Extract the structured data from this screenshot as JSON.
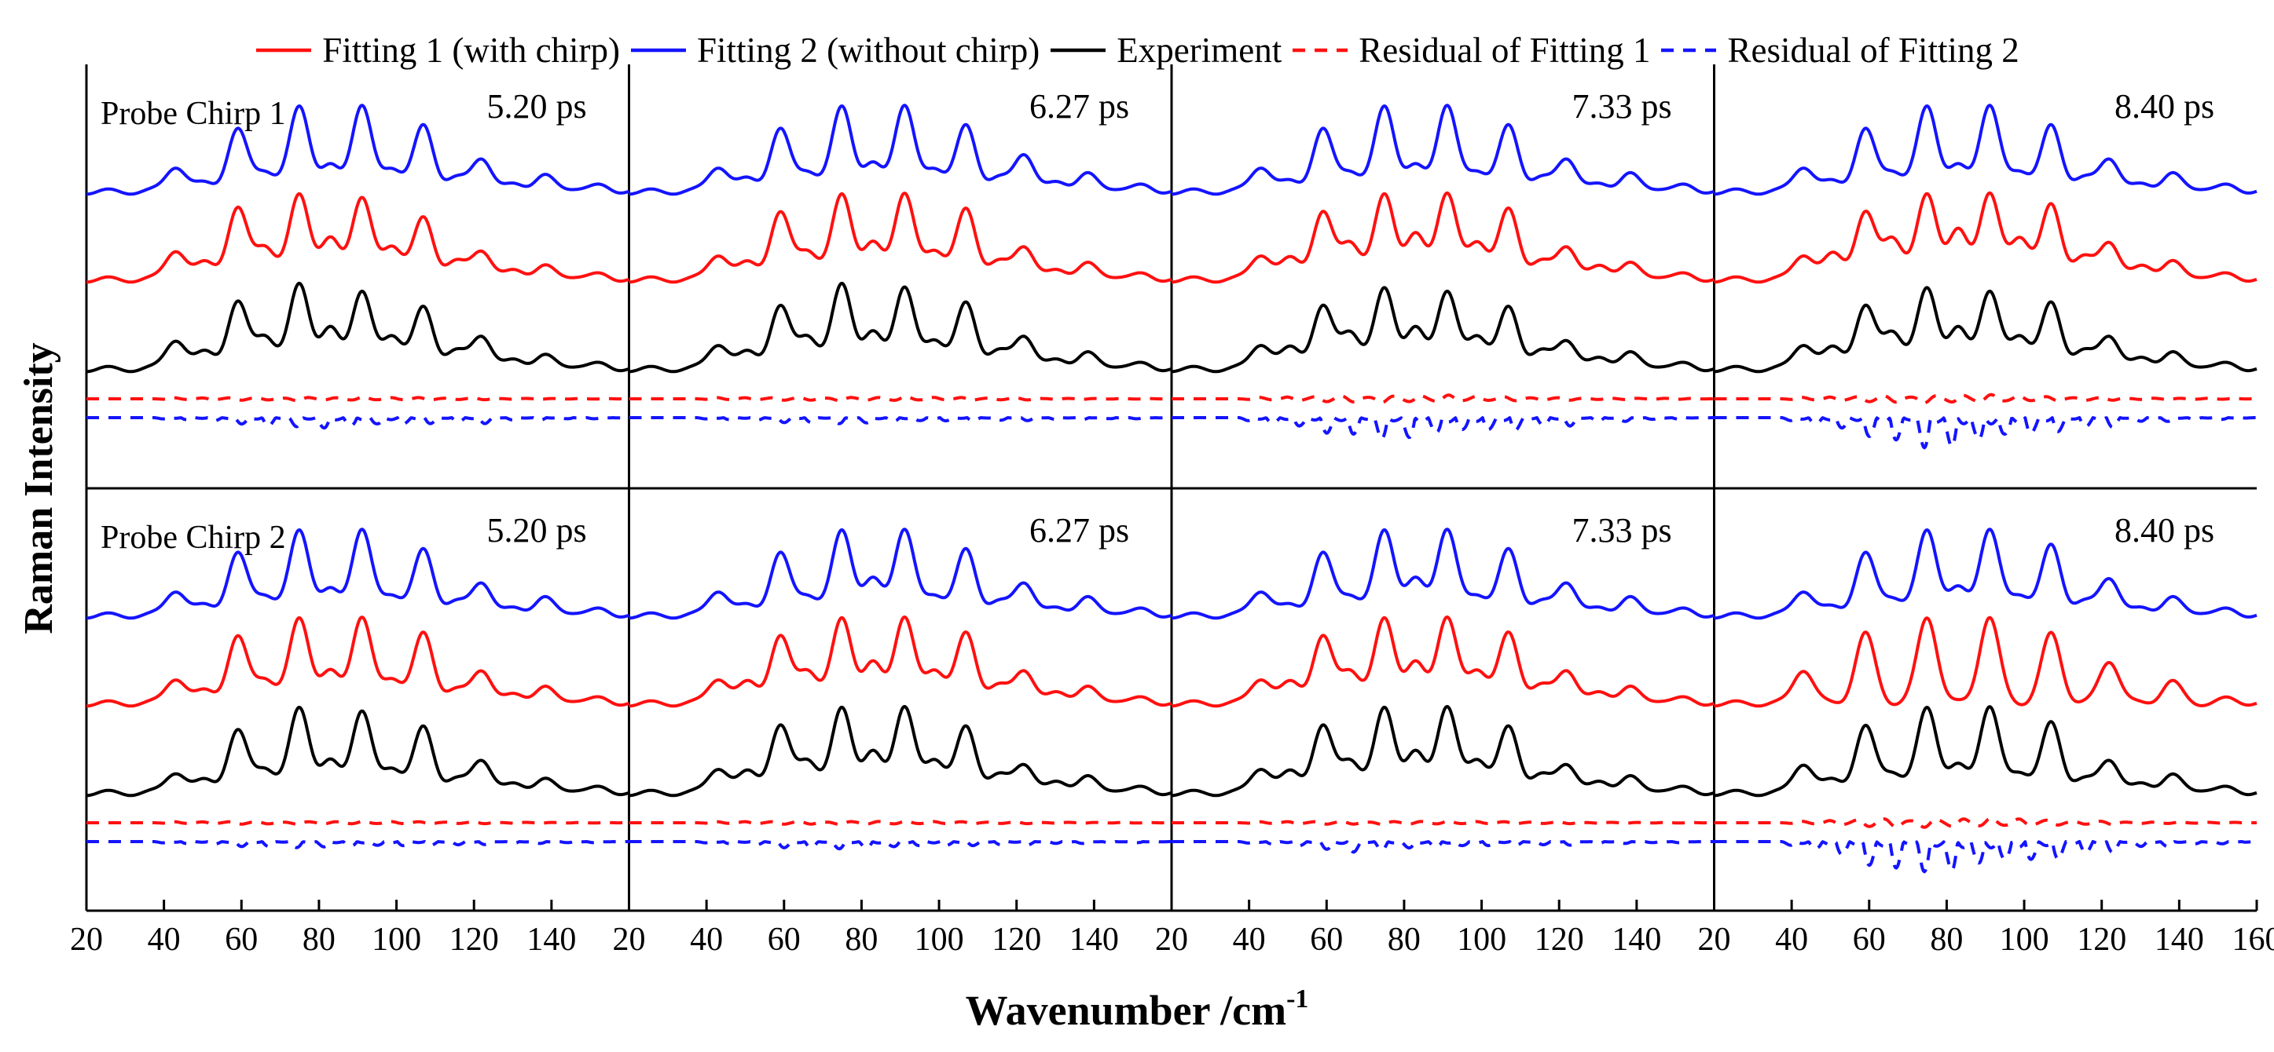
{
  "legend": [
    {
      "label": "Fitting 1 (with chirp)",
      "color": "#ff1010",
      "dash": "solid"
    },
    {
      "label": "Fitting 2 (without chirp)",
      "color": "#1414ff",
      "dash": "solid"
    },
    {
      "label": "Experiment",
      "color": "#000000",
      "dash": "solid"
    },
    {
      "label": "Residual of  Fitting 1",
      "color": "#ff1010",
      "dash": "dashed"
    },
    {
      "label": "Residual of Fitting 2",
      "color": "#1414ff",
      "dash": "dashed"
    }
  ],
  "axes": {
    "ylabel": "Raman Intensity",
    "xlabel_main": "Wavenumber /cm",
    "xlabel_sup": "-1",
    "xlim": [
      20,
      160
    ],
    "panel_tick_labels": [
      "20",
      "40",
      "60",
      "80",
      "100",
      "120",
      "140"
    ],
    "last_panel_tick_labels": [
      "20",
      "40",
      "60",
      "80",
      "100",
      "120",
      "140",
      "160"
    ]
  },
  "rows": [
    {
      "label": "Probe Chirp 1",
      "times": [
        "5.20 ps",
        "6.27 ps",
        "7.33 ps",
        "8.40 ps"
      ]
    },
    {
      "label": "Probe Chirp 2",
      "times": [
        "5.20 ps",
        "6.27 ps",
        "7.33 ps",
        "8.40 ps"
      ]
    }
  ],
  "chart_data": {
    "type": "line",
    "title": "",
    "xlabel": "Wavenumber /cm-1",
    "ylabel": "Raman Intensity",
    "xlim": [
      20,
      160
    ],
    "grid": false,
    "legend_position": "top",
    "peak_positions_cm-1": [
      43,
      51,
      59,
      66,
      75,
      83,
      91,
      99,
      107,
      115,
      122,
      131,
      138,
      146,
      153
    ],
    "series_order": [
      "Fitting 2 (without chirp)",
      "Fitting 1 (with chirp)",
      "Experiment",
      "Residual of  Fitting 1",
      "Residual of Fitting 2"
    ],
    "panels": [
      {
        "row": "Probe Chirp 1",
        "time": "5.20 ps",
        "peaks": {
          "x": [
            43,
            51,
            59,
            66,
            75,
            83,
            91,
            99,
            107,
            115,
            122,
            131,
            138,
            146,
            153
          ],
          "Fitting 2 (without chirp)": [
            0.3,
            0.1,
            0.7,
            0.25,
            1.0,
            0.28,
            1.0,
            0.28,
            0.75,
            0.15,
            0.4,
            0.08,
            0.18,
            0.05,
            0.06
          ],
          "Fitting 1 (with chirp)": [
            0.35,
            0.2,
            0.8,
            0.4,
            1.0,
            0.45,
            0.95,
            0.4,
            0.7,
            0.2,
            0.35,
            0.1,
            0.15,
            0.05,
            0.05
          ],
          "Experiment": [
            0.35,
            0.2,
            0.75,
            0.4,
            1.0,
            0.45,
            0.9,
            0.4,
            0.7,
            0.2,
            0.4,
            0.1,
            0.15,
            0.05,
            0.05
          ],
          "Residual of  Fitting 1": [
            0.04,
            0.04,
            0.06,
            0.05,
            0.08,
            0.05,
            0.08,
            0.05,
            0.06,
            0.03,
            0.04,
            0.02,
            0.02,
            0.01,
            0.01
          ],
          "Residual of Fitting 2": [
            0.05,
            0.06,
            0.1,
            0.14,
            0.15,
            0.2,
            0.18,
            0.16,
            0.12,
            0.06,
            0.1,
            0.04,
            0.04,
            0.02,
            0.02
          ]
        }
      },
      {
        "row": "Probe Chirp 1",
        "time": "6.27 ps",
        "peaks": {
          "x": [
            43,
            51,
            59,
            66,
            75,
            83,
            91,
            99,
            107,
            115,
            122,
            131,
            138,
            146,
            153
          ],
          "Fitting 2 (without chirp)": [
            0.3,
            0.15,
            0.7,
            0.25,
            1.0,
            0.3,
            1.0,
            0.28,
            0.75,
            0.15,
            0.45,
            0.1,
            0.2,
            0.05,
            0.06
          ],
          "Fitting 1 (with chirp)": [
            0.3,
            0.2,
            0.75,
            0.35,
            1.0,
            0.4,
            1.0,
            0.35,
            0.8,
            0.2,
            0.4,
            0.1,
            0.18,
            0.05,
            0.05
          ],
          "Experiment": [
            0.3,
            0.2,
            0.7,
            0.4,
            1.0,
            0.4,
            0.95,
            0.35,
            0.75,
            0.2,
            0.4,
            0.1,
            0.18,
            0.05,
            0.05
          ],
          "Residual of  Fitting 1": [
            0.05,
            0.05,
            0.06,
            0.06,
            0.08,
            0.06,
            0.1,
            0.06,
            0.06,
            0.04,
            0.05,
            0.02,
            0.02,
            0.01,
            0.01
          ],
          "Residual of Fitting 2": [
            0.05,
            0.05,
            0.08,
            0.08,
            0.1,
            0.1,
            0.08,
            0.08,
            0.06,
            0.04,
            0.05,
            0.03,
            0.03,
            0.02,
            0.02
          ]
        }
      },
      {
        "row": "Probe Chirp 1",
        "time": "7.33 ps",
        "peaks": {
          "x": [
            43,
            51,
            59,
            66,
            75,
            83,
            91,
            99,
            107,
            115,
            122,
            131,
            138,
            146,
            153
          ],
          "Fitting 2 (without chirp)": [
            0.3,
            0.12,
            0.7,
            0.25,
            1.0,
            0.28,
            1.0,
            0.25,
            0.75,
            0.15,
            0.4,
            0.08,
            0.2,
            0.05,
            0.06
          ],
          "Fitting 1 (with chirp)": [
            0.3,
            0.25,
            0.75,
            0.45,
            1.0,
            0.5,
            1.0,
            0.45,
            0.8,
            0.2,
            0.4,
            0.15,
            0.18,
            0.05,
            0.05
          ],
          "Experiment": [
            0.3,
            0.25,
            0.7,
            0.45,
            0.95,
            0.45,
            0.9,
            0.4,
            0.7,
            0.2,
            0.35,
            0.12,
            0.18,
            0.05,
            0.05
          ],
          "Residual of  Fitting 1": [
            0.06,
            0.08,
            0.12,
            0.14,
            0.16,
            0.14,
            0.16,
            0.1,
            0.1,
            0.05,
            0.06,
            0.03,
            0.03,
            0.02,
            0.02
          ],
          "Residual of Fitting 2": [
            0.12,
            0.16,
            0.25,
            0.28,
            0.35,
            0.38,
            0.35,
            0.3,
            0.25,
            0.12,
            0.14,
            0.06,
            0.06,
            0.03,
            0.03
          ]
        }
      },
      {
        "row": "Probe Chirp 1",
        "time": "8.40 ps",
        "peaks": {
          "x": [
            43,
            51,
            59,
            66,
            75,
            83,
            91,
            99,
            107,
            115,
            122,
            131,
            138,
            146,
            153
          ],
          "Fitting 2 (without chirp)": [
            0.3,
            0.12,
            0.7,
            0.25,
            1.0,
            0.28,
            1.0,
            0.25,
            0.75,
            0.15,
            0.4,
            0.08,
            0.2,
            0.05,
            0.06
          ],
          "Fitting 1 (with chirp)": [
            0.3,
            0.3,
            0.75,
            0.5,
            1.0,
            0.55,
            1.0,
            0.5,
            0.85,
            0.25,
            0.45,
            0.15,
            0.2,
            0.05,
            0.05
          ],
          "Experiment": [
            0.3,
            0.25,
            0.7,
            0.45,
            0.95,
            0.45,
            0.9,
            0.4,
            0.75,
            0.2,
            0.4,
            0.12,
            0.18,
            0.05,
            0.05
          ],
          "Residual of  Fitting 1": [
            0.06,
            0.08,
            0.12,
            0.15,
            0.18,
            0.16,
            0.18,
            0.12,
            0.1,
            0.06,
            0.06,
            0.03,
            0.03,
            0.02,
            0.02
          ],
          "Residual of Fitting 2": [
            0.12,
            0.2,
            0.3,
            0.38,
            0.5,
            0.55,
            0.5,
            0.4,
            0.28,
            0.14,
            0.16,
            0.06,
            0.06,
            0.03,
            0.03
          ]
        }
      },
      {
        "row": "Probe Chirp 2",
        "time": "5.20 ps",
        "peaks": {
          "x": [
            43,
            51,
            59,
            66,
            75,
            83,
            91,
            99,
            107,
            115,
            122,
            131,
            138,
            146,
            153
          ],
          "Fitting 2 (without chirp)": [
            0.3,
            0.12,
            0.7,
            0.25,
            1.0,
            0.28,
            1.0,
            0.25,
            0.75,
            0.15,
            0.4,
            0.08,
            0.2,
            0.05,
            0.06
          ],
          "Fitting 1 (with chirp)": [
            0.3,
            0.15,
            0.75,
            0.3,
            1.0,
            0.35,
            1.0,
            0.3,
            0.8,
            0.15,
            0.4,
            0.1,
            0.18,
            0.05,
            0.05
          ],
          "Experiment": [
            0.25,
            0.15,
            0.7,
            0.3,
            1.0,
            0.35,
            0.95,
            0.3,
            0.75,
            0.15,
            0.4,
            0.1,
            0.15,
            0.05,
            0.05
          ],
          "Residual of  Fitting 1": [
            0.04,
            0.04,
            0.06,
            0.05,
            0.06,
            0.05,
            0.06,
            0.05,
            0.05,
            0.03,
            0.04,
            0.02,
            0.02,
            0.01,
            0.01
          ],
          "Residual of Fitting 2": [
            0.05,
            0.05,
            0.08,
            0.08,
            0.1,
            0.1,
            0.1,
            0.1,
            0.08,
            0.05,
            0.05,
            0.03,
            0.03,
            0.02,
            0.02
          ]
        }
      },
      {
        "row": "Probe Chirp 2",
        "time": "6.27 ps",
        "peaks": {
          "x": [
            43,
            51,
            59,
            66,
            75,
            83,
            91,
            99,
            107,
            115,
            122,
            131,
            138,
            146,
            153
          ],
          "Fitting 2 (without chirp)": [
            0.3,
            0.12,
            0.7,
            0.25,
            1.0,
            0.4,
            1.0,
            0.25,
            0.75,
            0.15,
            0.4,
            0.08,
            0.2,
            0.05,
            0.06
          ],
          "Fitting 1 (with chirp)": [
            0.3,
            0.25,
            0.75,
            0.4,
            1.0,
            0.45,
            1.0,
            0.4,
            0.8,
            0.2,
            0.4,
            0.12,
            0.18,
            0.05,
            0.05
          ],
          "Experiment": [
            0.3,
            0.25,
            0.75,
            0.4,
            1.0,
            0.45,
            1.0,
            0.4,
            0.75,
            0.2,
            0.35,
            0.12,
            0.18,
            0.05,
            0.05
          ],
          "Residual of  Fitting 1": [
            0.04,
            0.05,
            0.06,
            0.06,
            0.07,
            0.06,
            0.07,
            0.05,
            0.05,
            0.03,
            0.04,
            0.02,
            0.02,
            0.01,
            0.01
          ],
          "Residual of Fitting 2": [
            0.05,
            0.06,
            0.1,
            0.1,
            0.12,
            0.12,
            0.12,
            0.1,
            0.08,
            0.05,
            0.06,
            0.03,
            0.03,
            0.02,
            0.02
          ]
        }
      },
      {
        "row": "Probe Chirp 2",
        "time": "7.33 ps",
        "peaks": {
          "x": [
            43,
            51,
            59,
            66,
            75,
            83,
            91,
            99,
            107,
            115,
            122,
            131,
            138,
            146,
            153
          ],
          "Fitting 2 (without chirp)": [
            0.3,
            0.12,
            0.7,
            0.25,
            1.0,
            0.4,
            1.0,
            0.25,
            0.75,
            0.15,
            0.4,
            0.08,
            0.2,
            0.05,
            0.06
          ],
          "Fitting 1 (with chirp)": [
            0.3,
            0.25,
            0.75,
            0.4,
            1.0,
            0.45,
            1.0,
            0.4,
            0.8,
            0.2,
            0.4,
            0.12,
            0.18,
            0.05,
            0.05
          ],
          "Experiment": [
            0.3,
            0.25,
            0.75,
            0.4,
            1.0,
            0.45,
            1.0,
            0.4,
            0.75,
            0.2,
            0.35,
            0.12,
            0.18,
            0.05,
            0.05
          ],
          "Residual of  Fitting 1": [
            0.04,
            0.05,
            0.06,
            0.06,
            0.07,
            0.06,
            0.07,
            0.05,
            0.05,
            0.03,
            0.04,
            0.02,
            0.02,
            0.01,
            0.01
          ],
          "Residual of Fitting 2": [
            0.06,
            0.08,
            0.12,
            0.18,
            0.14,
            0.12,
            0.12,
            0.1,
            0.08,
            0.05,
            0.06,
            0.03,
            0.03,
            0.02,
            0.02
          ]
        }
      },
      {
        "row": "Probe Chirp 2",
        "time": "8.40 ps",
        "peaks": {
          "x": [
            43,
            51,
            59,
            66,
            75,
            83,
            91,
            99,
            107,
            115,
            122,
            131,
            138,
            146,
            153
          ],
          "Fitting 2 (without chirp)": [
            0.3,
            0.1,
            0.7,
            0.22,
            1.0,
            0.3,
            1.0,
            0.25,
            0.8,
            0.15,
            0.45,
            0.08,
            0.2,
            0.05,
            0.06
          ],
          "Fitting 1 (with chirp)": [
            0.4,
            0.0,
            0.8,
            0.0,
            1.0,
            0.0,
            1.0,
            0.0,
            0.8,
            0.0,
            0.5,
            0.0,
            0.25,
            0.0,
            0.05
          ],
          "Experiment": [
            0.35,
            0.15,
            0.75,
            0.25,
            1.0,
            0.3,
            1.0,
            0.25,
            0.8,
            0.15,
            0.4,
            0.1,
            0.2,
            0.05,
            0.05
          ],
          "Residual of  Fitting 1": [
            0.06,
            0.1,
            0.16,
            0.2,
            0.2,
            0.18,
            0.2,
            0.16,
            0.12,
            0.06,
            0.08,
            0.03,
            0.03,
            0.02,
            0.02
          ],
          "Residual of Fitting 2": [
            0.15,
            0.25,
            0.38,
            0.45,
            0.5,
            0.55,
            0.5,
            0.45,
            0.35,
            0.18,
            0.18,
            0.08,
            0.08,
            0.04,
            0.04
          ]
        }
      }
    ]
  }
}
